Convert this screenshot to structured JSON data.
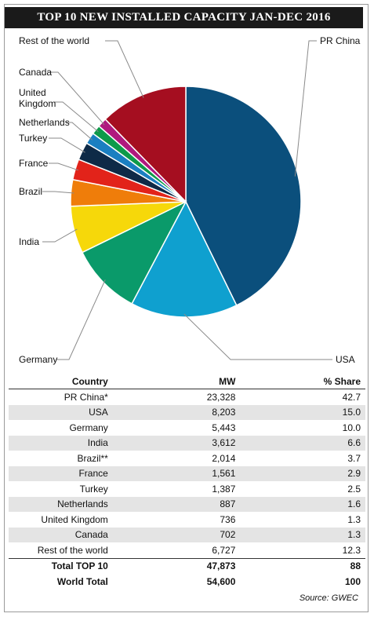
{
  "title": "TOP 10 NEW INSTALLED CAPACITY JAN-DEC 2016",
  "chart_data": {
    "type": "pie",
    "title": "TOP 10 NEW INSTALLED CAPACITY JAN-DEC 2016",
    "slices": [
      {
        "label": "PR China",
        "value": 42.7,
        "color": "#0b4f7c"
      },
      {
        "label": "USA",
        "value": 15.0,
        "color": "#0fa0cf"
      },
      {
        "label": "Germany",
        "value": 10.0,
        "color": "#0a9a6a"
      },
      {
        "label": "India",
        "value": 6.6,
        "color": "#f6d80a"
      },
      {
        "label": "Brazil",
        "value": 3.7,
        "color": "#ef7d0a"
      },
      {
        "label": "France",
        "value": 2.9,
        "color": "#e2231a"
      },
      {
        "label": "Turkey",
        "value": 2.5,
        "color": "#0e2a47"
      },
      {
        "label": "Netherlands",
        "value": 1.6,
        "color": "#1a7fc1"
      },
      {
        "label": "United Kingdom",
        "value": 1.3,
        "color": "#0e9a4a"
      },
      {
        "label": "Canada",
        "value": 1.3,
        "color": "#b0187e"
      },
      {
        "label": "Rest of the world",
        "value": 12.3,
        "color": "#a50e20"
      }
    ]
  },
  "table": {
    "headers": {
      "country": "Country",
      "mw": "MW",
      "share": "% Share"
    },
    "rows": [
      {
        "country": "PR China*",
        "mw": "23,328",
        "share": "42.7"
      },
      {
        "country": "USA",
        "mw": "8,203",
        "share": "15.0"
      },
      {
        "country": "Germany",
        "mw": "5,443",
        "share": "10.0"
      },
      {
        "country": "India",
        "mw": "3,612",
        "share": "6.6"
      },
      {
        "country": "Brazil**",
        "mw": "2,014",
        "share": "3.7"
      },
      {
        "country": "France",
        "mw": "1,561",
        "share": "2.9"
      },
      {
        "country": "Turkey",
        "mw": "1,387",
        "share": "2.5"
      },
      {
        "country": "Netherlands",
        "mw": "887",
        "share": "1.6"
      },
      {
        "country": "United Kingdom",
        "mw": "736",
        "share": "1.3"
      },
      {
        "country": "Canada",
        "mw": "702",
        "share": "1.3"
      },
      {
        "country": "Rest of the world",
        "mw": "6,727",
        "share": "12.3"
      }
    ],
    "totals": [
      {
        "country": "Total TOP 10",
        "mw": "47,873",
        "share": "88"
      },
      {
        "country": "World Total",
        "mw": "54,600",
        "share": "100"
      }
    ]
  },
  "source": "Source: GWEC"
}
